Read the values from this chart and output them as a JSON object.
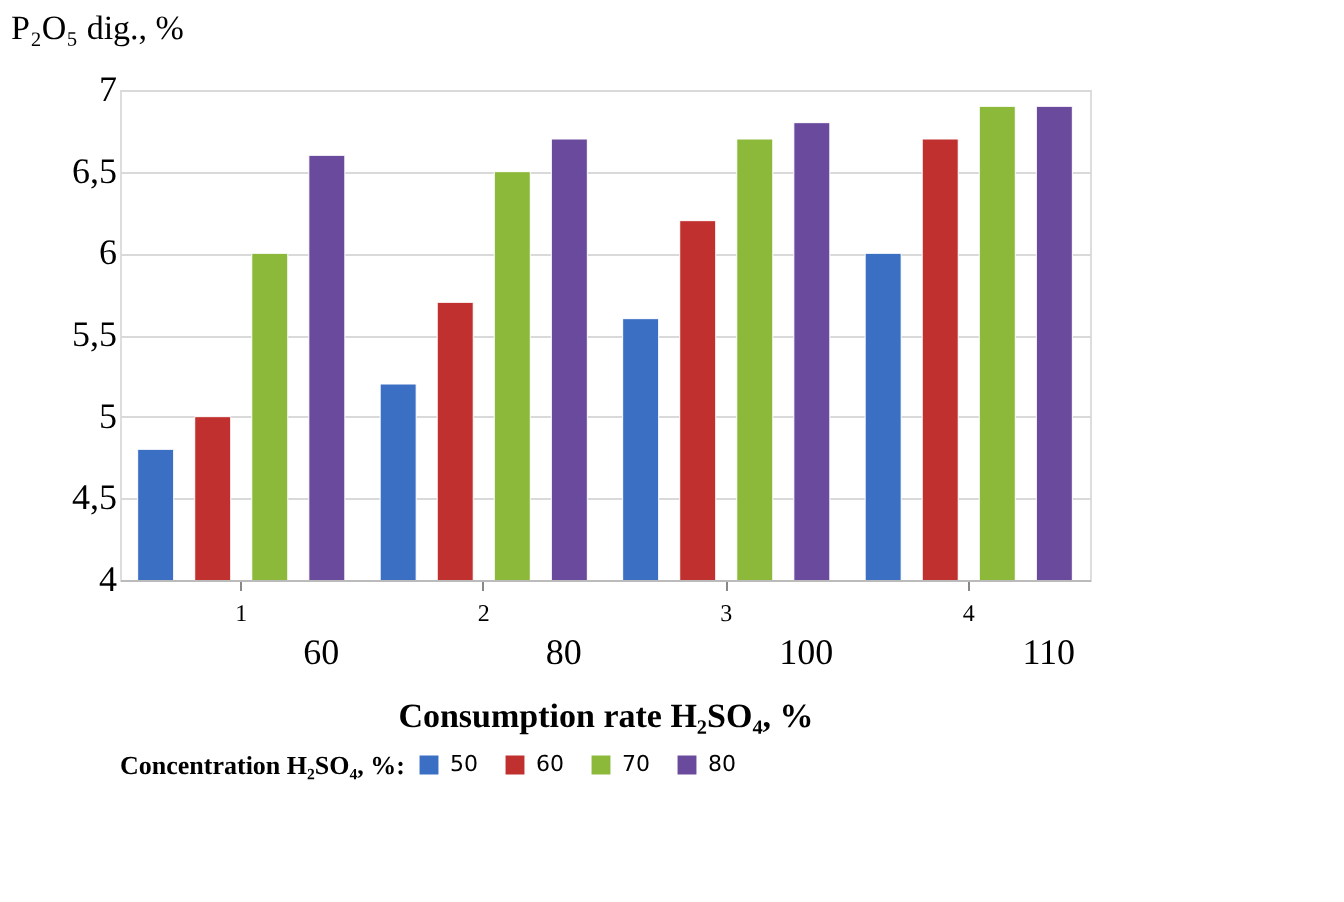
{
  "chart_data": {
    "type": "bar",
    "ylabel": "P₂O₅ dig., %",
    "xlabel": "Consumption rate H₂SO₄, %",
    "legend_title": "Concentration H₂SO₄, %:",
    "categories": [
      "1",
      "2",
      "3",
      "4"
    ],
    "series": [
      {
        "name": "50",
        "color": "#3a6fc4",
        "values": [
          4.8,
          5.2,
          5.6,
          6.0
        ]
      },
      {
        "name": "60",
        "color": "#c0302e",
        "values": [
          5.0,
          5.7,
          6.2,
          6.7
        ]
      },
      {
        "name": "70",
        "color": "#8cb93a",
        "values": [
          6.0,
          6.5,
          6.7,
          6.9
        ]
      },
      {
        "name": "80",
        "color": "#6a4a9c",
        "values": [
          6.6,
          6.7,
          6.8,
          6.9
        ]
      }
    ],
    "ylim": [
      4,
      7
    ],
    "yticks": [
      4,
      {
        "value": 4.5,
        "label": "4,5"
      },
      5,
      {
        "value": 5.5,
        "label": "5,5"
      },
      6,
      {
        "value": 6.5,
        "label": "6,5"
      },
      7
    ],
    "annotations": [
      "60",
      "80",
      "100",
      "110"
    ],
    "grid": "y",
    "legend": "bottom"
  }
}
